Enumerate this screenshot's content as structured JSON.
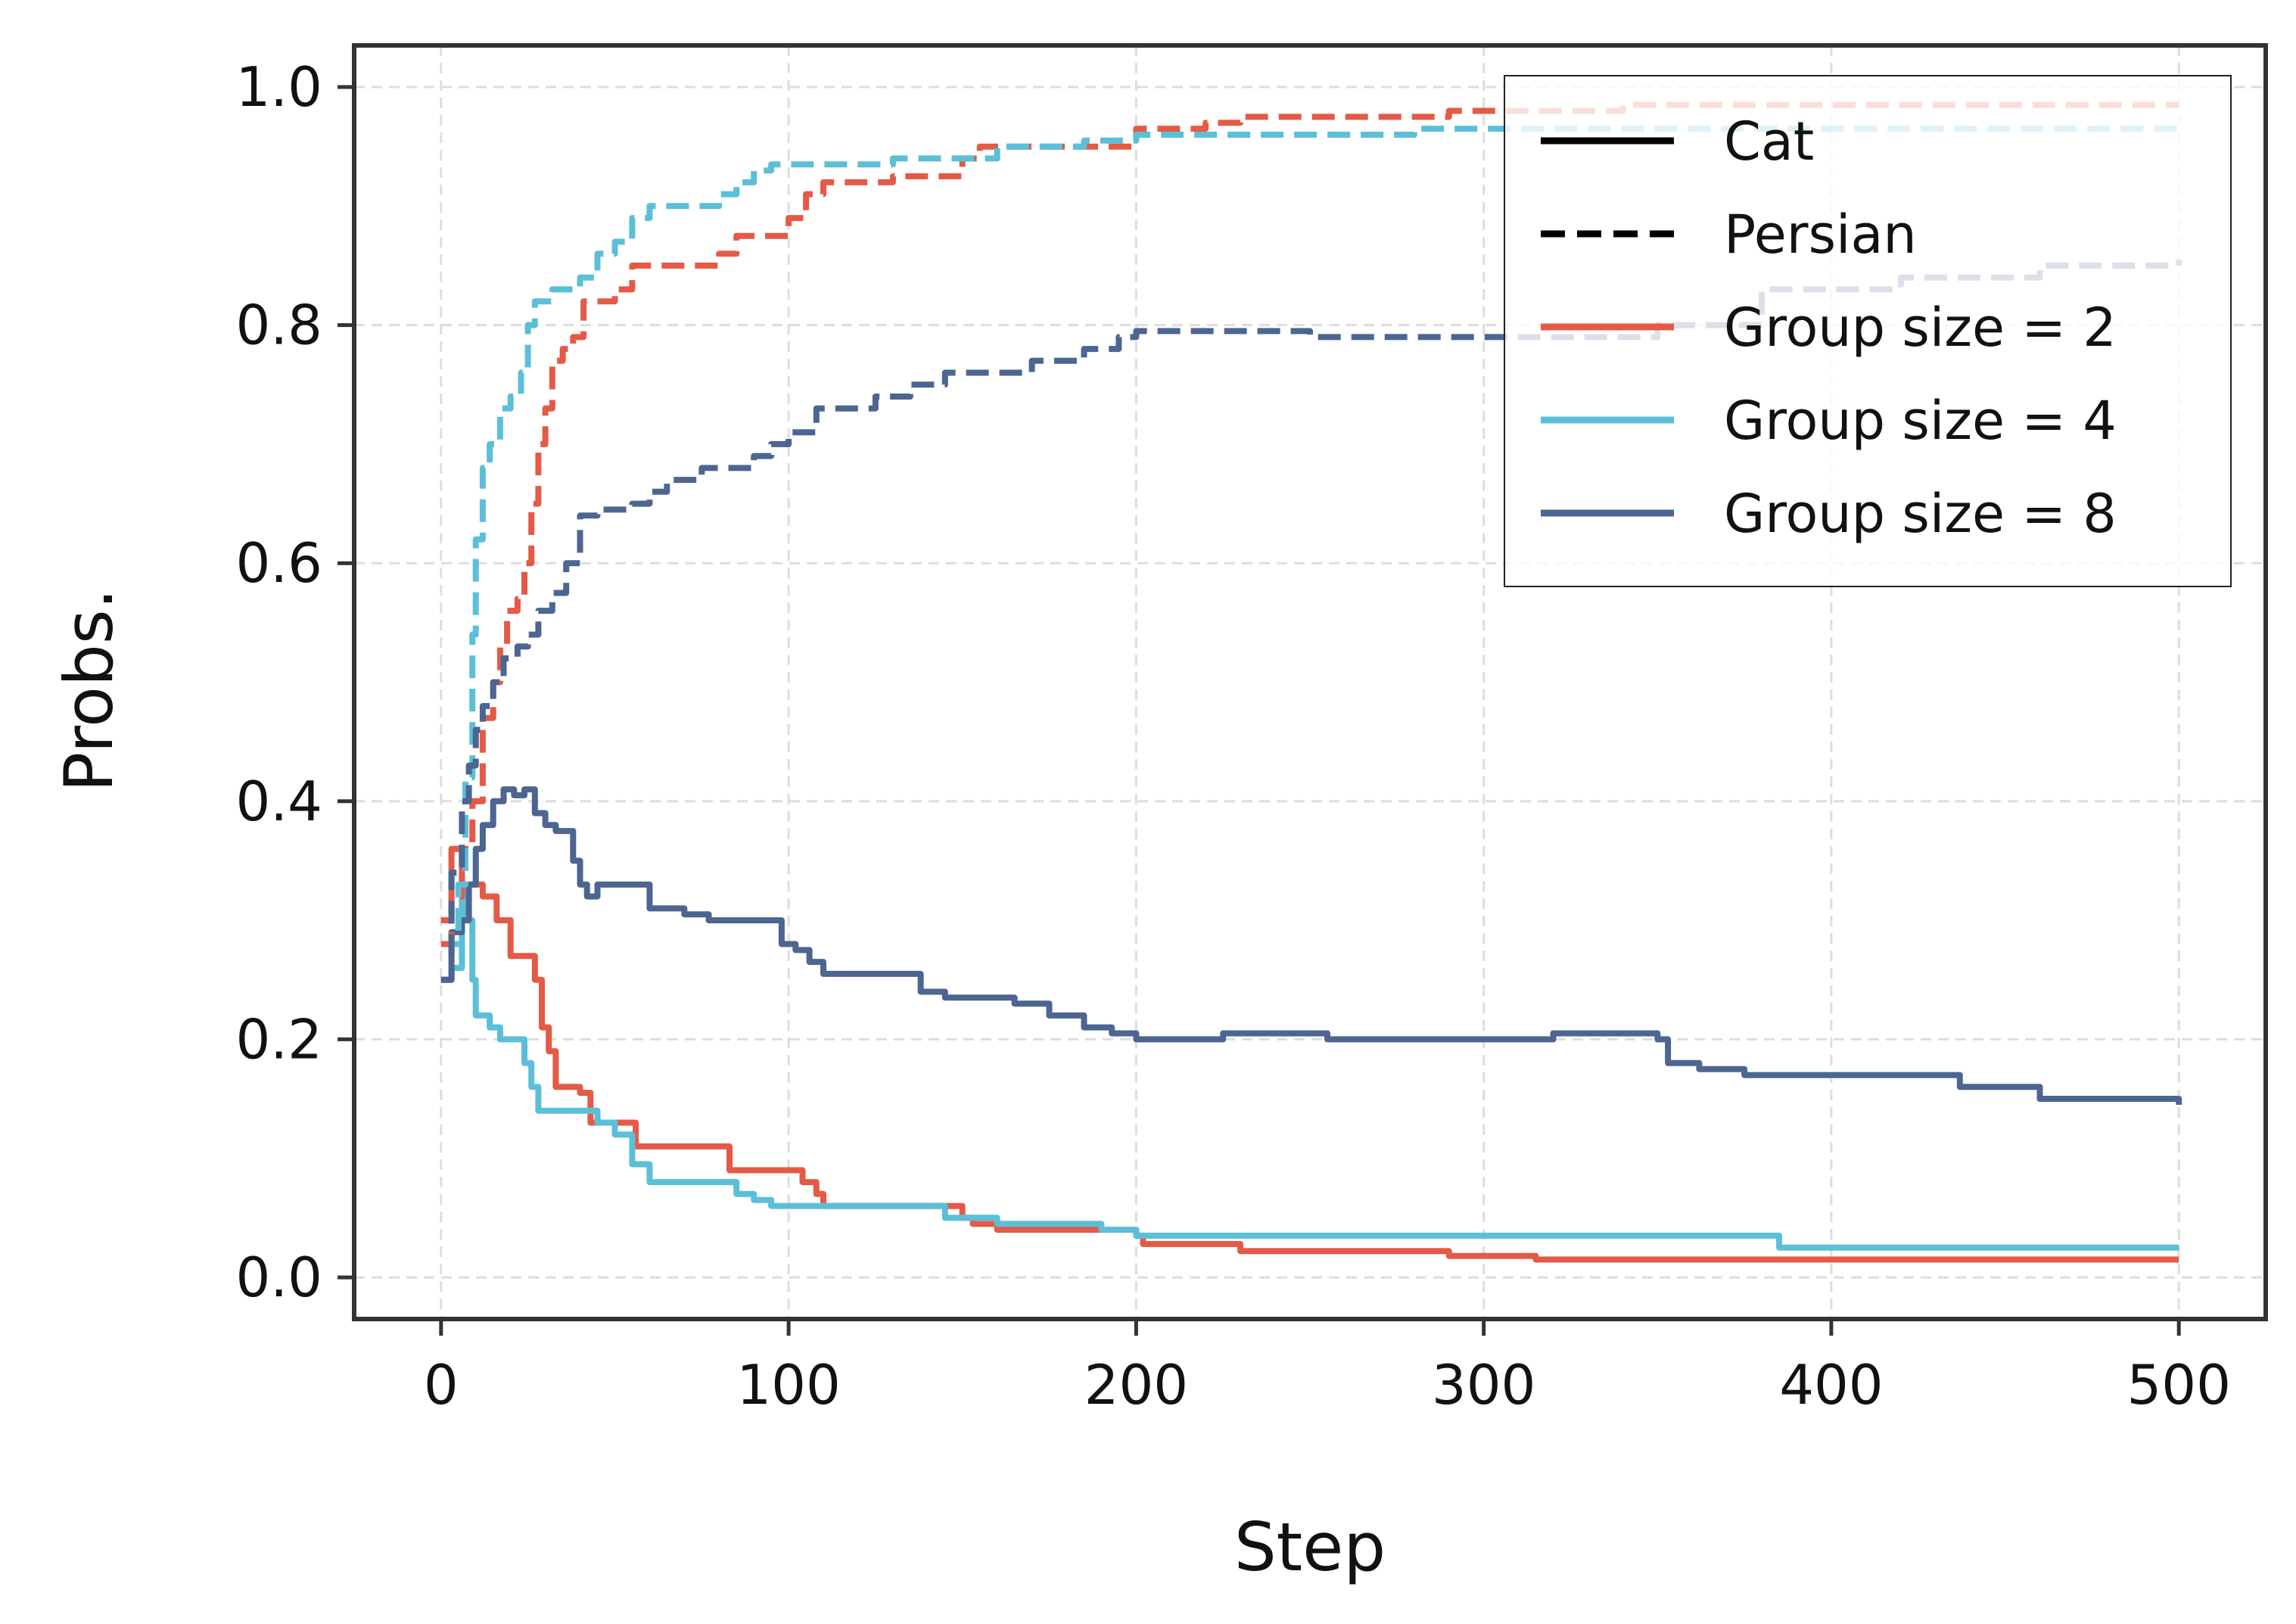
{
  "chart_data": {
    "type": "line",
    "title": "",
    "xlabel": "Step",
    "ylabel": "Probs.",
    "xlim": [
      -25,
      525
    ],
    "ylim": [
      -0.035,
      1.035
    ],
    "x_ticks": [
      0,
      100,
      200,
      300,
      400,
      500
    ],
    "x_tick_labels": [
      "0",
      "100",
      "200",
      "300",
      "400",
      "500"
    ],
    "y_ticks": [
      0.0,
      0.2,
      0.4,
      0.6,
      0.8,
      1.0
    ],
    "y_tick_labels": [
      "0.0",
      "0.2",
      "0.4",
      "0.6",
      "0.8",
      "1.0"
    ],
    "grid": true,
    "legend_position": "top-right",
    "legend": [
      {
        "label": "Cat",
        "color": "#000000",
        "style": "solid"
      },
      {
        "label": "Persian",
        "color": "#000000",
        "style": "dashed"
      },
      {
        "label": "Group size = 2",
        "color": "#E45A47",
        "style": "solid"
      },
      {
        "label": "Group size = 4",
        "color": "#5BBFD8",
        "style": "solid"
      },
      {
        "label": "Group size = 8",
        "color": "#4C6591",
        "style": "solid"
      }
    ],
    "series": [
      {
        "group": "Group size = 2",
        "class": "Cat",
        "color": "#E45A47",
        "style": "solid",
        "points": [
          [
            0,
            0.3
          ],
          [
            3,
            0.36
          ],
          [
            6,
            0.33
          ],
          [
            12,
            0.32
          ],
          [
            16,
            0.3
          ],
          [
            20,
            0.27
          ],
          [
            24,
            0.27
          ],
          [
            27,
            0.25
          ],
          [
            29,
            0.21
          ],
          [
            31,
            0.19
          ],
          [
            33,
            0.16
          ],
          [
            40,
            0.155
          ],
          [
            43,
            0.13
          ],
          [
            50,
            0.13
          ],
          [
            55,
            0.13
          ],
          [
            56,
            0.11
          ],
          [
            70,
            0.11
          ],
          [
            82,
            0.11
          ],
          [
            83,
            0.09
          ],
          [
            100,
            0.09
          ],
          [
            104,
            0.08
          ],
          [
            108,
            0.07
          ],
          [
            110,
            0.06
          ],
          [
            140,
            0.06
          ],
          [
            150,
            0.05
          ],
          [
            153,
            0.045
          ],
          [
            160,
            0.04
          ],
          [
            200,
            0.035
          ],
          [
            202,
            0.028
          ],
          [
            230,
            0.022
          ],
          [
            290,
            0.018
          ],
          [
            315,
            0.015
          ],
          [
            500,
            0.015
          ]
        ]
      },
      {
        "group": "Group size = 4",
        "class": "Cat",
        "color": "#5BBFD8",
        "style": "solid",
        "points": [
          [
            0,
            0.25
          ],
          [
            3,
            0.26
          ],
          [
            6,
            0.33
          ],
          [
            7,
            0.3
          ],
          [
            9,
            0.25
          ],
          [
            10,
            0.22
          ],
          [
            14,
            0.21
          ],
          [
            17,
            0.2
          ],
          [
            22,
            0.2
          ],
          [
            24,
            0.18
          ],
          [
            26,
            0.16
          ],
          [
            28,
            0.14
          ],
          [
            40,
            0.14
          ],
          [
            45,
            0.13
          ],
          [
            50,
            0.12
          ],
          [
            55,
            0.095
          ],
          [
            60,
            0.08
          ],
          [
            80,
            0.08
          ],
          [
            85,
            0.07
          ],
          [
            90,
            0.065
          ],
          [
            95,
            0.06
          ],
          [
            140,
            0.06
          ],
          [
            145,
            0.05
          ],
          [
            160,
            0.045
          ],
          [
            190,
            0.04
          ],
          [
            200,
            0.035
          ],
          [
            350,
            0.035
          ],
          [
            385,
            0.025
          ],
          [
            500,
            0.025
          ]
        ]
      },
      {
        "group": "Group size = 8",
        "class": "Cat",
        "color": "#4C6591",
        "style": "solid",
        "points": [
          [
            0,
            0.25
          ],
          [
            3,
            0.29
          ],
          [
            6,
            0.3
          ],
          [
            8,
            0.33
          ],
          [
            10,
            0.36
          ],
          [
            12,
            0.38
          ],
          [
            15,
            0.4
          ],
          [
            18,
            0.41
          ],
          [
            21,
            0.405
          ],
          [
            24,
            0.41
          ],
          [
            27,
            0.39
          ],
          [
            30,
            0.38
          ],
          [
            33,
            0.375
          ],
          [
            38,
            0.35
          ],
          [
            40,
            0.33
          ],
          [
            42,
            0.32
          ],
          [
            45,
            0.33
          ],
          [
            55,
            0.33
          ],
          [
            60,
            0.31
          ],
          [
            70,
            0.305
          ],
          [
            77,
            0.3
          ],
          [
            95,
            0.3
          ],
          [
            98,
            0.28
          ],
          [
            102,
            0.275
          ],
          [
            106,
            0.265
          ],
          [
            110,
            0.255
          ],
          [
            135,
            0.255
          ],
          [
            138,
            0.24
          ],
          [
            145,
            0.235
          ],
          [
            165,
            0.23
          ],
          [
            175,
            0.22
          ],
          [
            185,
            0.21
          ],
          [
            193,
            0.205
          ],
          [
            200,
            0.2
          ],
          [
            220,
            0.2
          ],
          [
            225,
            0.205
          ],
          [
            255,
            0.2
          ],
          [
            320,
            0.205
          ],
          [
            350,
            0.2
          ],
          [
            353,
            0.18
          ],
          [
            362,
            0.175
          ],
          [
            375,
            0.17
          ],
          [
            437,
            0.16
          ],
          [
            460,
            0.15
          ],
          [
            500,
            0.145
          ]
        ]
      },
      {
        "group": "Group size = 2",
        "class": "Persian",
        "color": "#E45A47",
        "style": "dashed",
        "points": [
          [
            0,
            0.28
          ],
          [
            3,
            0.32
          ],
          [
            6,
            0.36
          ],
          [
            9,
            0.4
          ],
          [
            12,
            0.47
          ],
          [
            15,
            0.5
          ],
          [
            17,
            0.53
          ],
          [
            19,
            0.56
          ],
          [
            22,
            0.57
          ],
          [
            24,
            0.6
          ],
          [
            26,
            0.65
          ],
          [
            28,
            0.7
          ],
          [
            30,
            0.73
          ],
          [
            32,
            0.77
          ],
          [
            35,
            0.78
          ],
          [
            38,
            0.79
          ],
          [
            41,
            0.82
          ],
          [
            50,
            0.83
          ],
          [
            55,
            0.85
          ],
          [
            80,
            0.86
          ],
          [
            85,
            0.875
          ],
          [
            100,
            0.89
          ],
          [
            105,
            0.91
          ],
          [
            110,
            0.92
          ],
          [
            130,
            0.925
          ],
          [
            150,
            0.94
          ],
          [
            155,
            0.95
          ],
          [
            180,
            0.95
          ],
          [
            200,
            0.965
          ],
          [
            220,
            0.97
          ],
          [
            230,
            0.975
          ],
          [
            250,
            0.975
          ],
          [
            290,
            0.98
          ],
          [
            340,
            0.985
          ],
          [
            500,
            0.985
          ]
        ]
      },
      {
        "group": "Group size = 4",
        "class": "Persian",
        "color": "#5BBFD8",
        "style": "dashed",
        "points": [
          [
            0,
            0.25
          ],
          [
            3,
            0.28
          ],
          [
            5,
            0.33
          ],
          [
            7,
            0.42
          ],
          [
            9,
            0.54
          ],
          [
            10,
            0.62
          ],
          [
            12,
            0.68
          ],
          [
            14,
            0.7
          ],
          [
            17,
            0.73
          ],
          [
            20,
            0.74
          ],
          [
            23,
            0.76
          ],
          [
            25,
            0.8
          ],
          [
            27,
            0.82
          ],
          [
            32,
            0.83
          ],
          [
            40,
            0.84
          ],
          [
            45,
            0.86
          ],
          [
            50,
            0.87
          ],
          [
            55,
            0.89
          ],
          [
            60,
            0.9
          ],
          [
            80,
            0.91
          ],
          [
            85,
            0.92
          ],
          [
            90,
            0.93
          ],
          [
            95,
            0.935
          ],
          [
            130,
            0.94
          ],
          [
            160,
            0.95
          ],
          [
            185,
            0.955
          ],
          [
            200,
            0.96
          ],
          [
            280,
            0.965
          ],
          [
            500,
            0.97
          ]
        ]
      },
      {
        "group": "Group size = 8",
        "class": "Persian",
        "color": "#4C6591",
        "style": "dashed",
        "points": [
          [
            0,
            0.25
          ],
          [
            3,
            0.34
          ],
          [
            6,
            0.4
          ],
          [
            8,
            0.43
          ],
          [
            10,
            0.46
          ],
          [
            12,
            0.48
          ],
          [
            15,
            0.5
          ],
          [
            18,
            0.52
          ],
          [
            22,
            0.53
          ],
          [
            25,
            0.54
          ],
          [
            28,
            0.56
          ],
          [
            32,
            0.575
          ],
          [
            36,
            0.6
          ],
          [
            40,
            0.64
          ],
          [
            45,
            0.645
          ],
          [
            55,
            0.65
          ],
          [
            60,
            0.66
          ],
          [
            65,
            0.67
          ],
          [
            75,
            0.68
          ],
          [
            90,
            0.69
          ],
          [
            95,
            0.7
          ],
          [
            100,
            0.71
          ],
          [
            108,
            0.73
          ],
          [
            125,
            0.74
          ],
          [
            135,
            0.75
          ],
          [
            145,
            0.76
          ],
          [
            160,
            0.76
          ],
          [
            170,
            0.77
          ],
          [
            185,
            0.78
          ],
          [
            195,
            0.79
          ],
          [
            200,
            0.795
          ],
          [
            250,
            0.79
          ],
          [
            300,
            0.79
          ],
          [
            350,
            0.8
          ],
          [
            380,
            0.83
          ],
          [
            420,
            0.84
          ],
          [
            460,
            0.85
          ],
          [
            500,
            0.855
          ]
        ]
      }
    ]
  }
}
